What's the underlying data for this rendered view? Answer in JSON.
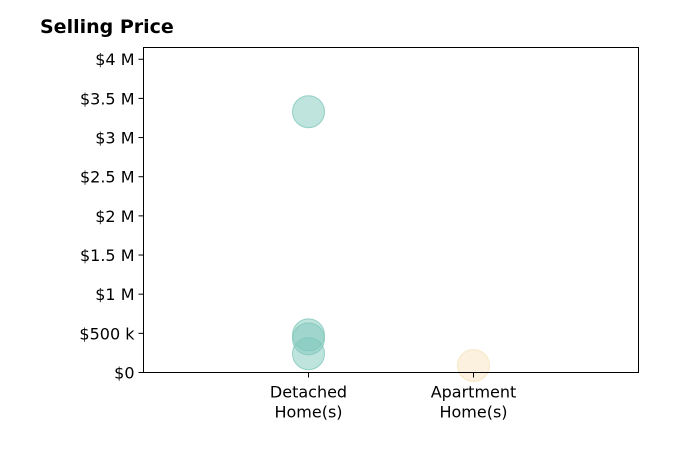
{
  "chart_data": {
    "type": "scatter",
    "title": "Selling Price",
    "xlabel": "",
    "ylabel": "",
    "categories": [
      "Detached\nHome(s)",
      "Apartment\nHome(s)"
    ],
    "xlim": [
      -1,
      2
    ],
    "ylim": [
      0,
      4150000
    ],
    "yticks": [
      0,
      500000,
      1000000,
      1500000,
      2000000,
      2500000,
      3000000,
      3500000,
      4000000
    ],
    "ytick_labels": [
      "$0",
      "$500 k",
      "$1 M",
      "$1.5 M",
      "$2 M",
      "$2.5 M",
      "$3 M",
      "$3.5 M",
      "$4 M"
    ],
    "grid": false,
    "legend": "none",
    "series": [
      {
        "category": 0,
        "color": "#7fc8bc",
        "values": [
          3330000,
          480000,
          430000,
          240000
        ]
      },
      {
        "category": 1,
        "color": "#f7e3bd",
        "values": [
          90000
        ]
      }
    ]
  }
}
